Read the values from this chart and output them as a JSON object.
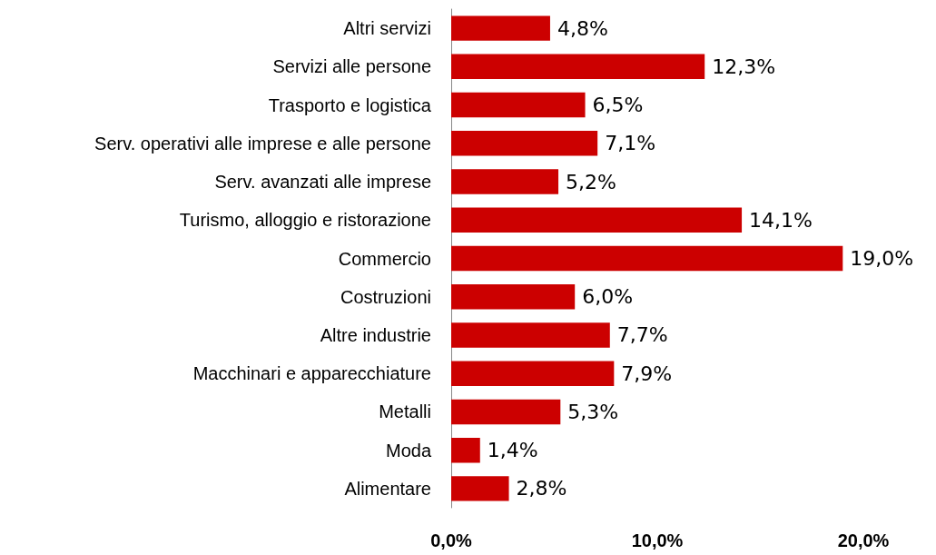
{
  "chart_data": {
    "type": "bar",
    "orientation": "horizontal",
    "categories": [
      "Altri servizi",
      "Servizi alle persone",
      "Trasporto e logistica",
      "Serv. operativi alle imprese e alle persone",
      "Serv. avanzati alle imprese",
      "Turismo, alloggio e ristorazione",
      "Commercio",
      "Costruzioni",
      "Altre industrie",
      "Macchinari e apparecchiature",
      "Metalli",
      "Moda",
      "Alimentare"
    ],
    "values": [
      4.8,
      12.3,
      6.5,
      7.1,
      5.2,
      14.1,
      19.0,
      6.0,
      7.7,
      7.9,
      5.3,
      1.4,
      2.8
    ],
    "value_labels": [
      "4,8%",
      "12,3%",
      "6,5%",
      "7,1%",
      "5,2%",
      "14,1%",
      "19,0%",
      "6,0%",
      "7,7%",
      "7,9%",
      "5,3%",
      "1,4%",
      "2,8%"
    ],
    "color": "#cc0000",
    "xlim": [
      0,
      20
    ],
    "xticks": [
      {
        "value": 0,
        "label": "0,0%"
      },
      {
        "value": 10,
        "label": "10,0%"
      },
      {
        "value": 20,
        "label": "20,0%"
      }
    ]
  }
}
